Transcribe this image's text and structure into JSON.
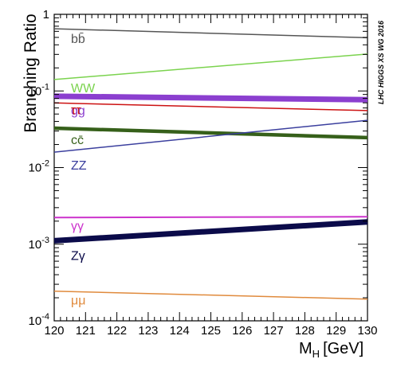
{
  "chart_data": {
    "type": "line",
    "ylabel": "Branching Ratio",
    "xlabel": "M",
    "xlabel_sub": "H",
    "xlabel_unit": "[GeV]",
    "watermark": "LHC HIGGS XS WG 2016",
    "xlim": [
      120,
      130
    ],
    "ylim": [
      0.0001,
      1
    ],
    "yscale": "log",
    "x_ticks": [
      "120",
      "121",
      "122",
      "123",
      "124",
      "125",
      "126",
      "127",
      "128",
      "129",
      "130"
    ],
    "y_ticks": [
      {
        "base": "10",
        "exp": "-4",
        "value": 0.0001
      },
      {
        "base": "10",
        "exp": "-3",
        "value": 0.001
      },
      {
        "base": "10",
        "exp": "-2",
        "value": 0.01
      },
      {
        "base": "10",
        "exp": "-1",
        "value": 0.1
      },
      {
        "base": "1",
        "exp": "",
        "value": 1
      }
    ],
    "series": [
      {
        "name": "bb̄",
        "color": "#555555",
        "band": 1.5,
        "x": [
          120,
          130
        ],
        "y": [
          0.648,
          0.495
        ],
        "label_color": "#555555"
      },
      {
        "name": "WW",
        "color": "#7bd34e",
        "band": 1.5,
        "x": [
          120,
          130
        ],
        "y": [
          0.141,
          0.303
        ],
        "label_color": "#7bd34e"
      },
      {
        "name": "gg",
        "color": "#8b3fcf",
        "band": 7,
        "x": [
          120,
          130
        ],
        "y": [
          0.0852,
          0.0768
        ],
        "label_color": "#8b3fcf"
      },
      {
        "name": "ττ",
        "color": "#cc1111",
        "band": 1.5,
        "x": [
          120,
          130
        ],
        "y": [
          0.0698,
          0.0554
        ],
        "label_color": "#cc1111"
      },
      {
        "name": "cc̄",
        "color": "#36601a",
        "band": 4.5,
        "x": [
          120,
          130
        ],
        "y": [
          0.0327,
          0.0246
        ],
        "label_color": "#36601a"
      },
      {
        "name": "ZZ",
        "color": "#3b3f9e",
        "band": 1.5,
        "x": [
          120,
          130
        ],
        "y": [
          0.0159,
          0.0414
        ],
        "label_color": "#3b3f9e"
      },
      {
        "name": "γγ",
        "color": "#cc33cc",
        "band": 2,
        "x": [
          120,
          130
        ],
        "y": [
          0.00223,
          0.00228
        ],
        "label_color": "#cc33cc"
      },
      {
        "name": "Zγ",
        "color": "#0b0b4a",
        "band": 7,
        "x": [
          120,
          130
        ],
        "y": [
          0.00111,
          0.00195
        ],
        "label_color": "#0b0b4a"
      },
      {
        "name": "μμ",
        "color": "#e08a3c",
        "band": 1.5,
        "x": [
          120,
          130
        ],
        "y": [
          0.000244,
          0.000192
        ],
        "label_color": "#e08a3c"
      }
    ]
  }
}
